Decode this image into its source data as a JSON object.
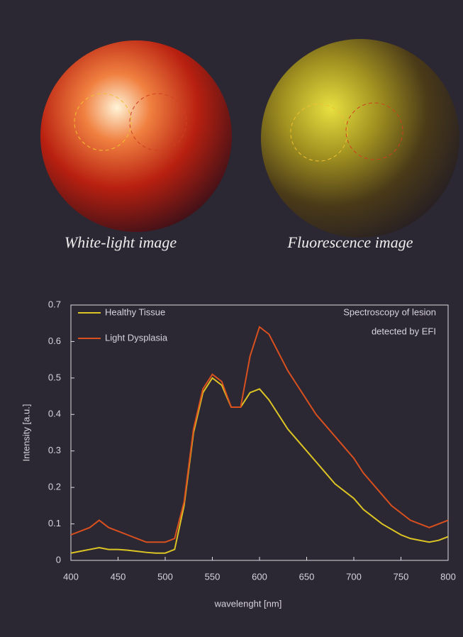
{
  "images": [
    {
      "caption": "White-light image"
    },
    {
      "caption": "Fluorescence image"
    }
  ],
  "chart_data": {
    "type": "line",
    "xlabel": "wavelenght [nm]",
    "ylabel": "Intensity [a.u.]",
    "annotation": [
      "Spectroscopy of lesion",
      "detected by EFI"
    ],
    "x": [
      400,
      410,
      420,
      430,
      440,
      450,
      460,
      470,
      480,
      490,
      500,
      510,
      520,
      530,
      540,
      550,
      560,
      570,
      580,
      590,
      600,
      610,
      620,
      630,
      640,
      650,
      660,
      670,
      680,
      690,
      700,
      710,
      720,
      730,
      740,
      750,
      760,
      770,
      780,
      790,
      800
    ],
    "series": [
      {
        "name": "Healthy Tissue",
        "color": "#dcc424",
        "values": [
          0.02,
          0.025,
          0.03,
          0.035,
          0.03,
          0.03,
          0.028,
          0.025,
          0.022,
          0.02,
          0.02,
          0.03,
          0.15,
          0.35,
          0.46,
          0.5,
          0.48,
          0.42,
          0.42,
          0.46,
          0.47,
          0.44,
          0.4,
          0.36,
          0.33,
          0.3,
          0.27,
          0.24,
          0.21,
          0.19,
          0.17,
          0.14,
          0.12,
          0.1,
          0.085,
          0.07,
          0.06,
          0.055,
          0.05,
          0.055,
          0.065
        ]
      },
      {
        "name": "Light Dysplasia",
        "color": "#d8501e",
        "values": [
          0.07,
          0.08,
          0.09,
          0.11,
          0.09,
          0.08,
          0.07,
          0.06,
          0.05,
          0.05,
          0.05,
          0.06,
          0.16,
          0.36,
          0.47,
          0.51,
          0.49,
          0.42,
          0.42,
          0.56,
          0.64,
          0.62,
          0.57,
          0.52,
          0.48,
          0.44,
          0.4,
          0.37,
          0.34,
          0.31,
          0.28,
          0.24,
          0.21,
          0.18,
          0.15,
          0.13,
          0.11,
          0.1,
          0.09,
          0.1,
          0.11
        ]
      }
    ],
    "xlim": [
      400,
      800
    ],
    "xticks": [
      400,
      450,
      500,
      550,
      600,
      650,
      700,
      750,
      800
    ],
    "ylim": [
      0,
      0.7
    ],
    "yticks": [
      0,
      0.1,
      0.2,
      0.3,
      0.4,
      0.5,
      0.6,
      0.7
    ],
    "legend": "upper left"
  }
}
